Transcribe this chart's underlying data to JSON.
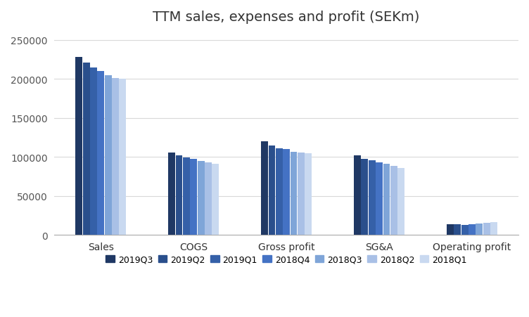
{
  "title": "TTM sales, expenses and profit (SEKm)",
  "categories": [
    "Sales",
    "COGS",
    "Gross profit",
    "SG&A",
    "Operating profit"
  ],
  "series": {
    "2019Q3": [
      228000,
      106000,
      120000,
      102000,
      14000
    ],
    "2019Q2": [
      221000,
      102000,
      115000,
      98000,
      14000
    ],
    "2019Q1": [
      215000,
      99000,
      111000,
      96000,
      13000
    ],
    "2018Q4": [
      210000,
      98000,
      110000,
      93000,
      14000
    ],
    "2018Q3": [
      205000,
      95000,
      107000,
      91000,
      15000
    ],
    "2018Q2": [
      201000,
      93000,
      106000,
      89000,
      16000
    ],
    "2018Q1": [
      200000,
      91000,
      105000,
      86000,
      17000
    ]
  },
  "colors": {
    "2019Q3": "#1F3864",
    "2019Q2": "#2A4F8C",
    "2019Q1": "#3560A8",
    "2018Q4": "#4472C4",
    "2018Q3": "#7FA5D8",
    "2018Q2": "#A9C0E6",
    "2018Q1": "#C9D9F0"
  },
  "ylim": [
    0,
    260000
  ],
  "yticks": [
    0,
    50000,
    100000,
    150000,
    200000,
    250000
  ],
  "background_color": "#ffffff",
  "grid_color": "#d9d9d9",
  "figsize": [
    7.52,
    4.52
  ],
  "dpi": 100
}
